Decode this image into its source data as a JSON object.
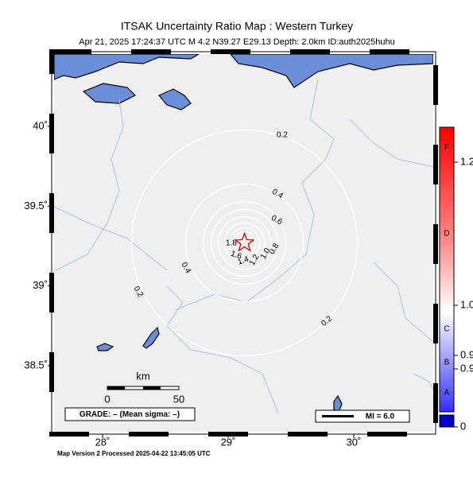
{
  "header": {
    "title": "ITSAK Uncertainty Ratio Map : Western Turkey",
    "subtitle": "Apr 21, 2025 17:24:37 UTC   M 4.2   N39.27 E29.13   Depth: 2.0km   ID:auth2025huhu"
  },
  "map": {
    "xlim": [
      27.614,
      30.633
    ],
    "ylim": [
      38.087,
      40.453
    ],
    "xticks": [
      {
        "value": 28,
        "label": "28˚"
      },
      {
        "value": 29,
        "label": "29˚"
      },
      {
        "value": 30,
        "label": "30˚"
      }
    ],
    "yticks": [
      {
        "value": 40,
        "label": "40˚"
      },
      {
        "value": 39.5,
        "label": "39.5˚"
      },
      {
        "value": 39,
        "label": "39˚"
      },
      {
        "value": 38.5,
        "label": "38.5˚"
      }
    ],
    "epicenter": {
      "lat": 39.27,
      "lon": 29.13
    },
    "contour_labels": [
      "0.2",
      "0.4",
      "0.6",
      "0.8",
      "1.0",
      "1.2",
      "1.4",
      "1.6",
      "1.8",
      "0.4",
      "0.2",
      "0.2"
    ]
  },
  "scale_bar": {
    "unit": "km",
    "labels": [
      "0",
      "50"
    ]
  },
  "grade": "GRADE: – (Mean sigma: –)",
  "mi_legend": "MI = 6.0",
  "colorbar": {
    "grades": [
      "F",
      "D",
      "C",
      "B",
      "A"
    ],
    "labels": [
      "1.2",
      "1.0",
      "0.9",
      "0.9",
      "0"
    ]
  },
  "footer": "Map Version 2 Processed 2025-04-22 13:45:05 UTC"
}
